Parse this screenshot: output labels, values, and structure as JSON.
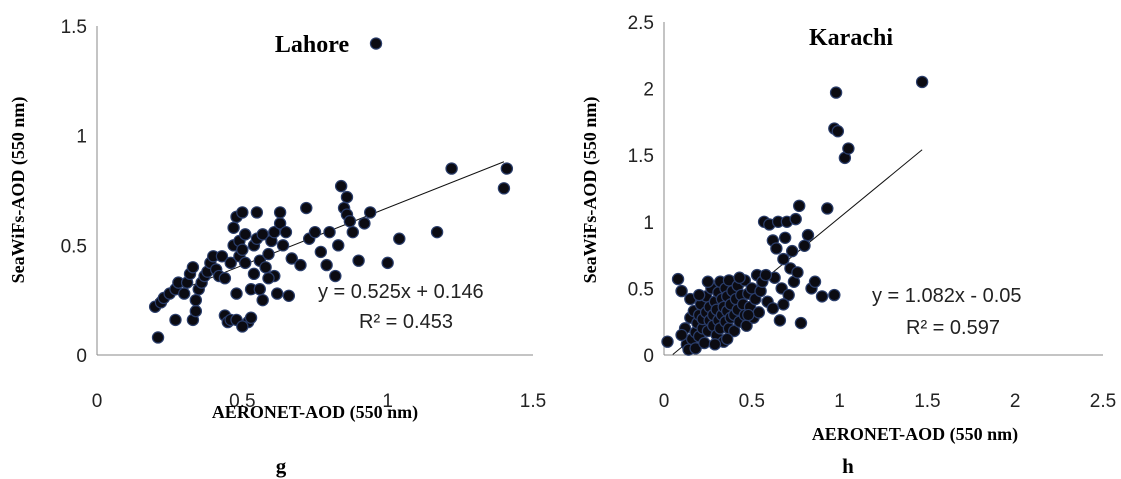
{
  "chart_data": [
    {
      "type": "scatter",
      "title": "Lahore",
      "xlabel": "AERONET-AOD (550 nm)",
      "ylabel": "SeaWiFs-AOD (550 nm)",
      "xlim": [
        0,
        1.5
      ],
      "ylim": [
        0,
        1.5
      ],
      "xticks": [
        "0",
        "0.5",
        "1",
        "1.5"
      ],
      "yticks": [
        "0",
        "0.5",
        "1",
        "1.5"
      ],
      "grid": false,
      "trendline": {
        "slope": 0.525,
        "intercept": 0.146,
        "x_range": [
          0.2,
          1.4
        ]
      },
      "equation": "y = 0.525x + 0.146",
      "r2": "R² = 0.453",
      "panel_label": "g",
      "points": [
        [
          0.2,
          0.22
        ],
        [
          0.21,
          0.08
        ],
        [
          0.22,
          0.24
        ],
        [
          0.23,
          0.26
        ],
        [
          0.25,
          0.28
        ],
        [
          0.27,
          0.3
        ],
        [
          0.27,
          0.16
        ],
        [
          0.28,
          0.33
        ],
        [
          0.3,
          0.28
        ],
        [
          0.31,
          0.33
        ],
        [
          0.32,
          0.37
        ],
        [
          0.33,
          0.4
        ],
        [
          0.33,
          0.16
        ],
        [
          0.34,
          0.2
        ],
        [
          0.34,
          0.25
        ],
        [
          0.35,
          0.3
        ],
        [
          0.36,
          0.33
        ],
        [
          0.37,
          0.36
        ],
        [
          0.38,
          0.38
        ],
        [
          0.39,
          0.42
        ],
        [
          0.4,
          0.45
        ],
        [
          0.41,
          0.39
        ],
        [
          0.42,
          0.36
        ],
        [
          0.43,
          0.45
        ],
        [
          0.44,
          0.35
        ],
        [
          0.44,
          0.18
        ],
        [
          0.45,
          0.15
        ],
        [
          0.46,
          0.16
        ],
        [
          0.46,
          0.42
        ],
        [
          0.47,
          0.5
        ],
        [
          0.47,
          0.58
        ],
        [
          0.48,
          0.63
        ],
        [
          0.48,
          0.28
        ],
        [
          0.49,
          0.52
        ],
        [
          0.49,
          0.45
        ],
        [
          0.5,
          0.48
        ],
        [
          0.5,
          0.65
        ],
        [
          0.51,
          0.55
        ],
        [
          0.51,
          0.42
        ],
        [
          0.52,
          0.15
        ],
        [
          0.53,
          0.3
        ],
        [
          0.54,
          0.37
        ],
        [
          0.54,
          0.5
        ],
        [
          0.55,
          0.53
        ],
        [
          0.55,
          0.65
        ],
        [
          0.56,
          0.43
        ],
        [
          0.56,
          0.3
        ],
        [
          0.57,
          0.55
        ],
        [
          0.58,
          0.4
        ],
        [
          0.59,
          0.46
        ],
        [
          0.6,
          0.52
        ],
        [
          0.61,
          0.56
        ],
        [
          0.61,
          0.36
        ],
        [
          0.62,
          0.28
        ],
        [
          0.63,
          0.6
        ],
        [
          0.63,
          0.65
        ],
        [
          0.64,
          0.5
        ],
        [
          0.65,
          0.56
        ],
        [
          0.66,
          0.27
        ],
        [
          0.67,
          0.44
        ],
        [
          0.7,
          0.41
        ],
        [
          0.72,
          0.67
        ],
        [
          0.73,
          0.53
        ],
        [
          0.75,
          0.56
        ],
        [
          0.77,
          0.47
        ],
        [
          0.79,
          0.41
        ],
        [
          0.8,
          0.56
        ],
        [
          0.82,
          0.36
        ],
        [
          0.83,
          0.5
        ],
        [
          0.84,
          0.77
        ],
        [
          0.85,
          0.67
        ],
        [
          0.86,
          0.72
        ],
        [
          0.86,
          0.64
        ],
        [
          0.87,
          0.61
        ],
        [
          0.88,
          0.56
        ],
        [
          0.9,
          0.43
        ],
        [
          0.92,
          0.6
        ],
        [
          0.94,
          0.65
        ],
        [
          1.0,
          0.42
        ],
        [
          1.04,
          0.53
        ],
        [
          1.17,
          0.56
        ],
        [
          1.22,
          0.85
        ],
        [
          1.4,
          0.76
        ],
        [
          1.41,
          0.85
        ],
        [
          0.96,
          1.42
        ],
        [
          0.53,
          0.17
        ],
        [
          0.48,
          0.16
        ],
        [
          0.5,
          0.13
        ],
        [
          0.57,
          0.25
        ],
        [
          0.59,
          0.35
        ]
      ]
    },
    {
      "type": "scatter",
      "title": "Karachi",
      "xlabel": "AERONET-AOD (550 nm)",
      "ylabel": "SeaWiFs-AOD (550 nm)",
      "xlim": [
        0,
        2.5
      ],
      "ylim": [
        0,
        2.5
      ],
      "xticks": [
        "0",
        "0.5",
        "1",
        "1.5",
        "2",
        "2.5"
      ],
      "yticks": [
        "0",
        "0.5",
        "1",
        "1.5",
        "2",
        "2.5"
      ],
      "grid": false,
      "trendline": {
        "slope": 1.082,
        "intercept": -0.05,
        "x_range": [
          0.05,
          1.47
        ]
      },
      "equation": "y = 1.082x - 0.05",
      "r2": "R² = 0.597",
      "panel_label": "h",
      "points": [
        [
          0.02,
          0.1
        ],
        [
          0.08,
          0.57
        ],
        [
          0.1,
          0.48
        ],
        [
          0.12,
          0.2
        ],
        [
          0.13,
          0.08
        ],
        [
          0.14,
          0.04
        ],
        [
          0.15,
          0.28
        ],
        [
          0.16,
          0.12
        ],
        [
          0.17,
          0.33
        ],
        [
          0.18,
          0.17
        ],
        [
          0.18,
          0.05
        ],
        [
          0.19,
          0.24
        ],
        [
          0.2,
          0.3
        ],
        [
          0.2,
          0.14
        ],
        [
          0.21,
          0.38
        ],
        [
          0.22,
          0.2
        ],
        [
          0.22,
          0.27
        ],
        [
          0.23,
          0.09
        ],
        [
          0.24,
          0.32
        ],
        [
          0.24,
          0.44
        ],
        [
          0.25,
          0.18
        ],
        [
          0.26,
          0.26
        ],
        [
          0.26,
          0.36
        ],
        [
          0.27,
          0.5
        ],
        [
          0.28,
          0.22
        ],
        [
          0.28,
          0.3
        ],
        [
          0.29,
          0.4
        ],
        [
          0.3,
          0.15
        ],
        [
          0.3,
          0.34
        ],
        [
          0.31,
          0.26
        ],
        [
          0.31,
          0.47
        ],
        [
          0.32,
          0.2
        ],
        [
          0.32,
          0.55
        ],
        [
          0.33,
          0.3
        ],
        [
          0.33,
          0.42
        ],
        [
          0.34,
          0.1
        ],
        [
          0.34,
          0.36
        ],
        [
          0.35,
          0.25
        ],
        [
          0.35,
          0.5
        ],
        [
          0.36,
          0.33
        ],
        [
          0.36,
          0.44
        ],
        [
          0.37,
          0.2
        ],
        [
          0.37,
          0.56
        ],
        [
          0.38,
          0.38
        ],
        [
          0.38,
          0.28
        ],
        [
          0.39,
          0.48
        ],
        [
          0.4,
          0.3
        ],
        [
          0.4,
          0.18
        ],
        [
          0.41,
          0.42
        ],
        [
          0.42,
          0.52
        ],
        [
          0.42,
          0.34
        ],
        [
          0.43,
          0.25
        ],
        [
          0.44,
          0.45
        ],
        [
          0.45,
          0.38
        ],
        [
          0.46,
          0.3
        ],
        [
          0.46,
          0.56
        ],
        [
          0.47,
          0.22
        ],
        [
          0.48,
          0.46
        ],
        [
          0.49,
          0.36
        ],
        [
          0.5,
          0.5
        ],
        [
          0.51,
          0.28
        ],
        [
          0.52,
          0.42
        ],
        [
          0.53,
          0.6
        ],
        [
          0.54,
          0.32
        ],
        [
          0.55,
          0.48
        ],
        [
          0.56,
          0.55
        ],
        [
          0.57,
          1.0
        ],
        [
          0.59,
          0.4
        ],
        [
          0.6,
          0.98
        ],
        [
          0.62,
          0.86
        ],
        [
          0.63,
          0.58
        ],
        [
          0.64,
          0.8
        ],
        [
          0.65,
          1.0
        ],
        [
          0.66,
          0.26
        ],
        [
          0.67,
          0.5
        ],
        [
          0.68,
          0.72
        ],
        [
          0.69,
          0.88
        ],
        [
          0.7,
          1.0
        ],
        [
          0.71,
          0.45
        ],
        [
          0.72,
          0.65
        ],
        [
          0.73,
          0.78
        ],
        [
          0.74,
          0.55
        ],
        [
          0.75,
          1.02
        ],
        [
          0.76,
          0.62
        ],
        [
          0.77,
          1.12
        ],
        [
          0.78,
          0.24
        ],
        [
          0.8,
          0.82
        ],
        [
          0.82,
          0.9
        ],
        [
          0.84,
          0.5
        ],
        [
          0.86,
          0.55
        ],
        [
          0.9,
          0.44
        ],
        [
          0.93,
          1.1
        ],
        [
          0.97,
          1.7
        ],
        [
          0.98,
          1.97
        ],
        [
          0.99,
          1.68
        ],
        [
          1.03,
          1.48
        ],
        [
          1.05,
          1.55
        ],
        [
          0.97,
          0.45
        ],
        [
          1.47,
          2.05
        ],
        [
          0.1,
          0.15
        ],
        [
          0.15,
          0.42
        ],
        [
          0.2,
          0.45
        ],
        [
          0.25,
          0.55
        ],
        [
          0.43,
          0.58
        ],
        [
          0.48,
          0.3
        ],
        [
          0.36,
          0.12
        ],
        [
          0.29,
          0.08
        ],
        [
          0.58,
          0.6
        ],
        [
          0.62,
          0.35
        ],
        [
          0.68,
          0.38
        ]
      ]
    }
  ]
}
